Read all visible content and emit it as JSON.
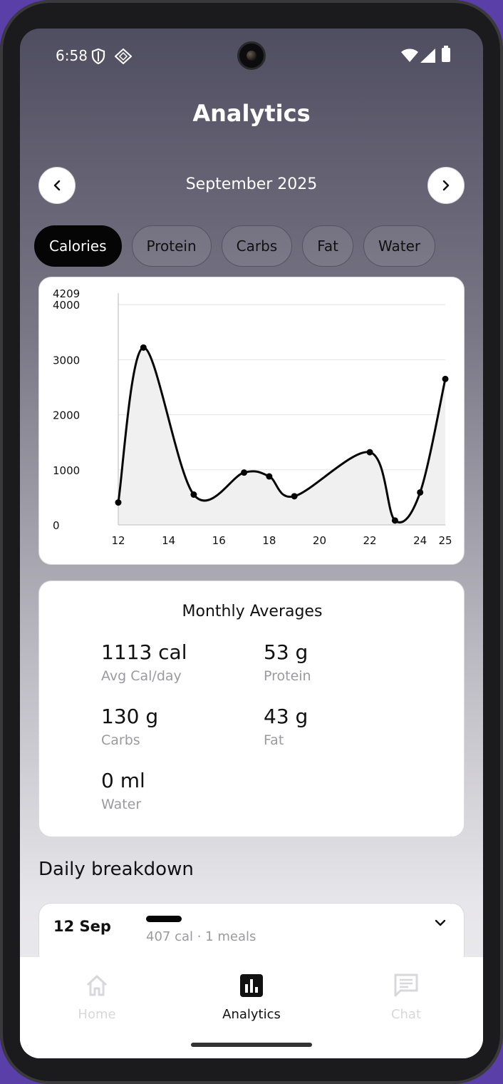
{
  "status_bar": {
    "time": "6:58"
  },
  "header": {
    "title": "Analytics"
  },
  "month_nav": {
    "label": "September 2025",
    "prev_icon": "chevron-left-icon",
    "next_icon": "chevron-right-icon"
  },
  "tabs": [
    {
      "label": "Calories",
      "active": true
    },
    {
      "label": "Protein",
      "active": false
    },
    {
      "label": "Carbs",
      "active": false
    },
    {
      "label": "Fat",
      "active": false
    },
    {
      "label": "Water",
      "active": false
    }
  ],
  "chart_data": {
    "type": "line",
    "x": [
      12,
      13,
      15,
      17,
      18,
      19,
      22,
      23,
      24,
      25
    ],
    "y": [
      407,
      3220,
      550,
      950,
      880,
      520,
      1320,
      80,
      590,
      2650
    ],
    "x_ticks": [
      "12",
      "14",
      "16",
      "18",
      "20",
      "22",
      "24",
      "25"
    ],
    "x_tick_values": [
      12,
      14,
      16,
      18,
      20,
      22,
      24,
      25
    ],
    "y_ticks": [
      "0",
      "1000",
      "2000",
      "3000",
      "4000",
      "4209"
    ],
    "y_tick_values": [
      0,
      1000,
      2000,
      3000,
      4000,
      4209
    ],
    "xlim": [
      12,
      25
    ],
    "ylim": [
      0,
      4209
    ],
    "grid": true,
    "line_color": "#050505",
    "fill_color": "#f0f0f0"
  },
  "monthly_averages": {
    "title": "Monthly Averages",
    "stats": [
      {
        "value": "1113 cal",
        "label": "Avg Cal/day"
      },
      {
        "value": "53 g",
        "label": "Protein"
      },
      {
        "value": "130 g",
        "label": "Carbs"
      },
      {
        "value": "43 g",
        "label": "Fat"
      },
      {
        "value": "0 ml",
        "label": "Water"
      }
    ]
  },
  "daily_breakdown": {
    "title": "Daily breakdown",
    "items": [
      {
        "date": "12 Sep",
        "summary": "407 cal · 1 meals"
      }
    ]
  },
  "bottom_nav": {
    "items": [
      {
        "label": "Home",
        "icon": "home-icon",
        "active": false
      },
      {
        "label": "Analytics",
        "icon": "bar-chart-icon",
        "active": true
      },
      {
        "label": "Chat",
        "icon": "chat-icon",
        "active": false
      }
    ]
  },
  "colors": {
    "accent": "#050505",
    "inactive": "#d8d8dc"
  }
}
